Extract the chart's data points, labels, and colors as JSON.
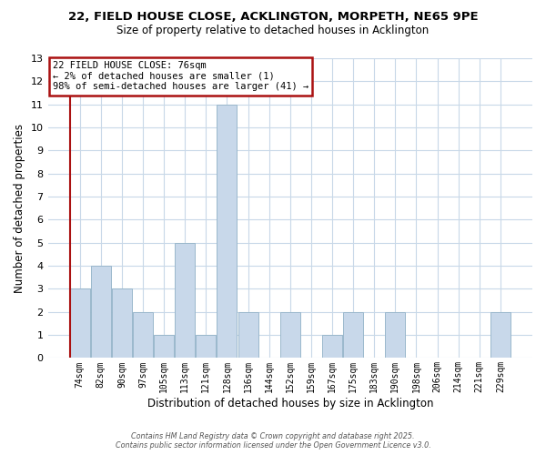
{
  "title": "22, FIELD HOUSE CLOSE, ACKLINGTON, MORPETH, NE65 9PE",
  "subtitle": "Size of property relative to detached houses in Acklington",
  "xlabel": "Distribution of detached houses by size in Acklington",
  "ylabel": "Number of detached properties",
  "bar_labels": [
    "74sqm",
    "82sqm",
    "90sqm",
    "97sqm",
    "105sqm",
    "113sqm",
    "121sqm",
    "128sqm",
    "136sqm",
    "144sqm",
    "152sqm",
    "159sqm",
    "167sqm",
    "175sqm",
    "183sqm",
    "190sqm",
    "198sqm",
    "206sqm",
    "214sqm",
    "221sqm",
    "229sqm"
  ],
  "bar_values": [
    3,
    4,
    3,
    2,
    1,
    5,
    1,
    11,
    2,
    0,
    2,
    0,
    1,
    2,
    0,
    2,
    0,
    0,
    0,
    0,
    2
  ],
  "bar_color": "#c8d8ea",
  "bar_edge_color": "#9ab8cc",
  "grid_color": "#c8d8e8",
  "ylim": [
    0,
    13
  ],
  "yticks": [
    0,
    1,
    2,
    3,
    4,
    5,
    6,
    7,
    8,
    9,
    10,
    11,
    12,
    13
  ],
  "subject_line_color": "#aa1111",
  "annotation_title": "22 FIELD HOUSE CLOSE: 76sqm",
  "annotation_line1": "← 2% of detached houses are smaller (1)",
  "annotation_line2": "98% of semi-detached houses are larger (41) →",
  "footer_line1": "Contains HM Land Registry data © Crown copyright and database right 2025.",
  "footer_line2": "Contains public sector information licensed under the Open Government Licence v3.0.",
  "background_color": "#ffffff"
}
